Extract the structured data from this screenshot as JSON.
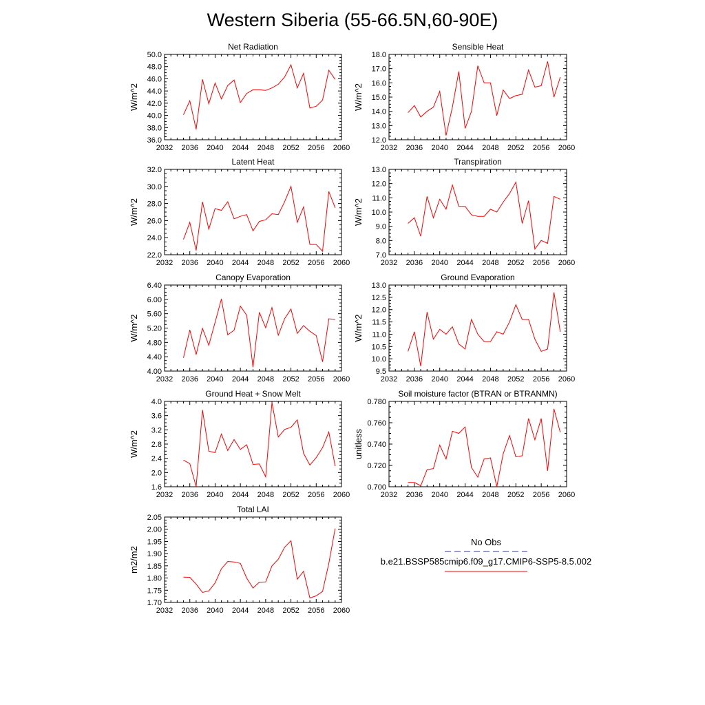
{
  "title": "Western Siberia (55-66.5N,60-90E)",
  "colors": {
    "series": "#ff0000",
    "obs": "#3333aa",
    "axis": "#000000"
  },
  "legend": {
    "obs_label": "No Obs",
    "model_label": "b.e21.BSSP585cmip6.f09_g17.CMIP6-SSP5-8.5.002"
  },
  "chart_data": [
    {
      "type": "line",
      "title": "Net Radiation",
      "ylabel": "W/m^2",
      "xlim": [
        2032,
        2060
      ],
      "ylim": [
        36.0,
        50.0
      ],
      "xticks": [
        "2032",
        "2036",
        "2040",
        "2044",
        "2048",
        "2052",
        "2056",
        "2060"
      ],
      "yticks": [
        "36.0",
        "38.0",
        "40.0",
        "42.0",
        "44.0",
        "46.0",
        "48.0",
        "50.0"
      ],
      "x": [
        2035,
        2036,
        2037,
        2038,
        2039,
        2040,
        2041,
        2042,
        2043,
        2044,
        2045,
        2046,
        2047,
        2048,
        2049,
        2050,
        2051,
        2052,
        2053,
        2054,
        2055,
        2056,
        2057,
        2058,
        2059
      ],
      "values": [
        40.1,
        42.4,
        37.7,
        45.9,
        41.9,
        45.3,
        42.7,
        44.9,
        45.8,
        42.1,
        43.6,
        44.2,
        44.2,
        44.1,
        44.5,
        45.1,
        46.3,
        48.3,
        44.5,
        46.9,
        41.2,
        41.5,
        42.5,
        47.4,
        45.9
      ]
    },
    {
      "type": "line",
      "title": "Sensible Heat",
      "ylabel": "W/m^2",
      "xlim": [
        2032,
        2060
      ],
      "ylim": [
        12.0,
        18.0
      ],
      "xticks": [
        "2032",
        "2036",
        "2040",
        "2044",
        "2048",
        "2052",
        "2056",
        "2060"
      ],
      "yticks": [
        "12.0",
        "13.0",
        "14.0",
        "15.0",
        "16.0",
        "17.0",
        "18.0"
      ],
      "x": [
        2035,
        2036,
        2037,
        2038,
        2039,
        2040,
        2041,
        2042,
        2043,
        2044,
        2045,
        2046,
        2047,
        2048,
        2049,
        2050,
        2051,
        2052,
        2053,
        2054,
        2055,
        2056,
        2057,
        2058,
        2059
      ],
      "values": [
        13.9,
        14.4,
        13.6,
        14.0,
        14.3,
        15.4,
        12.3,
        14.3,
        16.8,
        12.8,
        14.0,
        17.2,
        16.0,
        16.0,
        13.7,
        15.5,
        14.9,
        15.1,
        15.2,
        16.9,
        15.7,
        15.8,
        17.5,
        15.0,
        16.4
      ]
    },
    {
      "type": "line",
      "title": "Latent Heat",
      "ylabel": "W/m^2",
      "xlim": [
        2032,
        2060
      ],
      "ylim": [
        22.0,
        32.0
      ],
      "xticks": [
        "2032",
        "2036",
        "2040",
        "2044",
        "2048",
        "2052",
        "2056",
        "2060"
      ],
      "yticks": [
        "22.0",
        "24.0",
        "26.0",
        "28.0",
        "30.0",
        "32.0"
      ],
      "x": [
        2035,
        2036,
        2037,
        2038,
        2039,
        2040,
        2041,
        2042,
        2043,
        2044,
        2045,
        2046,
        2047,
        2048,
        2049,
        2050,
        2051,
        2052,
        2053,
        2054,
        2055,
        2056,
        2057,
        2058,
        2059
      ],
      "values": [
        23.8,
        25.8,
        22.5,
        28.2,
        25.0,
        27.4,
        27.2,
        28.2,
        26.2,
        26.5,
        26.7,
        24.8,
        25.9,
        26.1,
        26.8,
        26.7,
        28.2,
        30.0,
        25.8,
        27.6,
        23.2,
        23.2,
        22.4,
        29.4,
        27.5
      ]
    },
    {
      "type": "line",
      "title": "Transpiration",
      "ylabel": "W/m^2",
      "xlim": [
        2032,
        2060
      ],
      "ylim": [
        7.0,
        13.0
      ],
      "xticks": [
        "2032",
        "2036",
        "2040",
        "2044",
        "2048",
        "2052",
        "2056",
        "2060"
      ],
      "yticks": [
        "7.0",
        "8.0",
        "9.0",
        "10.0",
        "11.0",
        "12.0",
        "13.0"
      ],
      "x": [
        2035,
        2036,
        2037,
        2038,
        2039,
        2040,
        2041,
        2042,
        2043,
        2044,
        2045,
        2046,
        2047,
        2048,
        2049,
        2050,
        2051,
        2052,
        2053,
        2054,
        2055,
        2056,
        2057,
        2058,
        2059
      ],
      "values": [
        9.2,
        9.6,
        8.3,
        11.1,
        9.6,
        10.9,
        10.2,
        11.9,
        10.4,
        10.4,
        9.8,
        9.7,
        9.7,
        10.2,
        10.0,
        10.7,
        11.3,
        12.1,
        9.2,
        10.8,
        7.4,
        8.0,
        7.8,
        11.1,
        10.9
      ]
    },
    {
      "type": "line",
      "title": "Canopy Evaporation",
      "ylabel": "W/m^2",
      "xlim": [
        2032,
        2060
      ],
      "ylim": [
        4.0,
        6.4
      ],
      "xticks": [
        "2032",
        "2036",
        "2040",
        "2044",
        "2048",
        "2052",
        "2056",
        "2060"
      ],
      "yticks": [
        "4.00",
        "4.40",
        "4.80",
        "5.20",
        "5.60",
        "6.00",
        "6.40"
      ],
      "x": [
        2035,
        2036,
        2037,
        2038,
        2039,
        2040,
        2041,
        2042,
        2043,
        2044,
        2045,
        2046,
        2047,
        2048,
        2049,
        2050,
        2051,
        2052,
        2053,
        2054,
        2055,
        2056,
        2057,
        2058,
        2059
      ],
      "values": [
        4.37,
        5.15,
        4.46,
        5.19,
        4.72,
        5.36,
        6.01,
        5.01,
        5.14,
        5.81,
        5.56,
        4.11,
        5.64,
        5.21,
        5.77,
        5.0,
        5.46,
        5.73,
        5.05,
        5.27,
        5.11,
        4.99,
        4.26,
        5.46,
        5.44
      ]
    },
    {
      "type": "line",
      "title": "Ground Evaporation",
      "ylabel": "W/m^2",
      "xlim": [
        2032,
        2060
      ],
      "ylim": [
        9.5,
        13.0
      ],
      "xticks": [
        "2032",
        "2036",
        "2040",
        "2044",
        "2048",
        "2052",
        "2056",
        "2060"
      ],
      "yticks": [
        "9.5",
        "10.0",
        "10.5",
        "11.0",
        "11.5",
        "12.0",
        "12.5",
        "13.0"
      ],
      "x": [
        2035,
        2036,
        2037,
        2038,
        2039,
        2040,
        2041,
        2042,
        2043,
        2044,
        2045,
        2046,
        2047,
        2048,
        2049,
        2050,
        2051,
        2052,
        2053,
        2054,
        2055,
        2056,
        2057,
        2058,
        2059
      ],
      "values": [
        10.3,
        11.1,
        9.7,
        11.9,
        10.8,
        11.2,
        11.0,
        11.3,
        10.6,
        10.4,
        11.6,
        11.0,
        10.7,
        10.7,
        11.1,
        11.0,
        11.5,
        12.2,
        11.6,
        11.6,
        10.8,
        10.3,
        10.4,
        12.7,
        11.1
      ]
    },
    {
      "type": "line",
      "title": "Ground Heat + Snow Melt",
      "ylabel": "W/m^2",
      "xlim": [
        2032,
        2060
      ],
      "ylim": [
        1.6,
        4.0
      ],
      "xticks": [
        "2032",
        "2036",
        "2040",
        "2044",
        "2048",
        "2052",
        "2056",
        "2060"
      ],
      "yticks": [
        "1.6",
        "2.0",
        "2.4",
        "2.8",
        "3.2",
        "3.6",
        "4.0"
      ],
      "x": [
        2035,
        2036,
        2037,
        2038,
        2039,
        2040,
        2041,
        2042,
        2043,
        2044,
        2045,
        2046,
        2047,
        2048,
        2049,
        2050,
        2051,
        2052,
        2053,
        2054,
        2055,
        2056,
        2057,
        2058,
        2059
      ],
      "values": [
        2.35,
        2.25,
        1.6,
        3.76,
        2.6,
        2.56,
        3.08,
        2.62,
        2.93,
        2.65,
        2.78,
        2.23,
        2.24,
        1.88,
        3.97,
        3.0,
        3.21,
        3.27,
        3.48,
        2.54,
        2.21,
        2.42,
        2.7,
        3.14,
        2.18
      ]
    },
    {
      "type": "line",
      "title": "Soil moisture factor (BTRAN or BTRANMN)",
      "ylabel": "unitless",
      "xlim": [
        2032,
        2060
      ],
      "ylim": [
        0.7,
        0.78
      ],
      "xticks": [
        "2032",
        "2036",
        "2040",
        "2044",
        "2048",
        "2052",
        "2056",
        "2060"
      ],
      "yticks": [
        "0.700",
        "0.720",
        "0.740",
        "0.760",
        "0.780"
      ],
      "x": [
        2035,
        2036,
        2037,
        2038,
        2039,
        2040,
        2041,
        2042,
        2043,
        2044,
        2045,
        2046,
        2047,
        2048,
        2049,
        2050,
        2051,
        2052,
        2053,
        2054,
        2055,
        2056,
        2057,
        2058,
        2059
      ],
      "values": [
        0.704,
        0.704,
        0.701,
        0.716,
        0.717,
        0.739,
        0.726,
        0.752,
        0.75,
        0.756,
        0.718,
        0.709,
        0.726,
        0.727,
        0.7,
        0.731,
        0.748,
        0.728,
        0.729,
        0.764,
        0.744,
        0.764,
        0.715,
        0.773,
        0.751
      ]
    },
    {
      "type": "line",
      "title": "Total LAI",
      "ylabel": "m2/m2",
      "xlim": [
        2032,
        2060
      ],
      "ylim": [
        1.7,
        2.05
      ],
      "xticks": [
        "2032",
        "2036",
        "2040",
        "2044",
        "2048",
        "2052",
        "2056",
        "2060"
      ],
      "yticks": [
        "1.70",
        "1.75",
        "1.80",
        "1.85",
        "1.90",
        "1.95",
        "2.00",
        "2.05"
      ],
      "x": [
        2035,
        2036,
        2037,
        2038,
        2039,
        2040,
        2041,
        2042,
        2043,
        2044,
        2045,
        2046,
        2047,
        2048,
        2049,
        2050,
        2051,
        2052,
        2053,
        2054,
        2055,
        2056,
        2057,
        2058,
        2059
      ],
      "values": [
        1.804,
        1.803,
        1.775,
        1.741,
        1.747,
        1.78,
        1.838,
        1.868,
        1.866,
        1.86,
        1.8,
        1.759,
        1.783,
        1.784,
        1.85,
        1.877,
        1.926,
        1.953,
        1.795,
        1.828,
        1.718,
        1.727,
        1.745,
        1.86,
        2.003
      ]
    }
  ]
}
